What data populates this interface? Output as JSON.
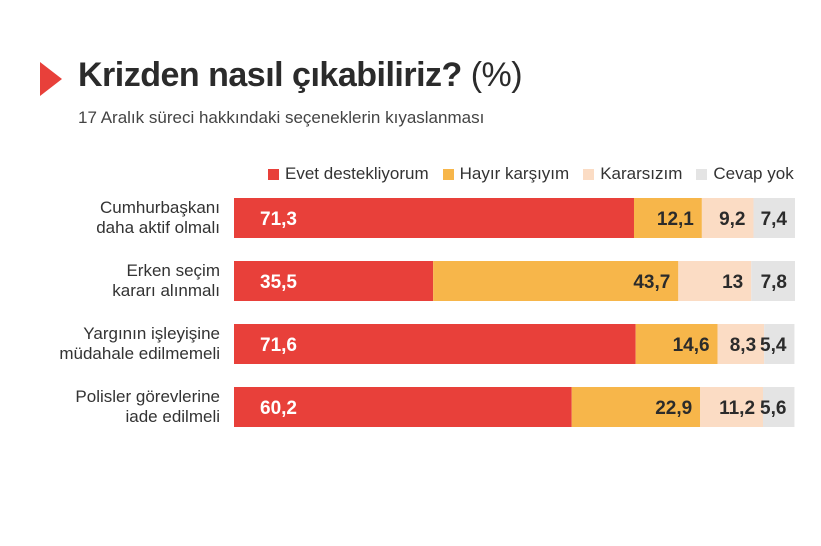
{
  "header": {
    "title": "Krizden nasıl çıkabiliriz?",
    "title_unit": "(%)",
    "subtitle": "17 Aralık süreci hakkındaki seçeneklerin kıyaslanması"
  },
  "chart_data": {
    "type": "bar",
    "orientation": "horizontal",
    "stacked": true,
    "categories": [
      "Cumhurbaşkanı daha aktif olmalı",
      "Erken seçim kararı alınmalı",
      "Yargının işleyişine müdahale edilmemeli",
      "Polisler görevlerine iade edilmeli"
    ],
    "category_lines": [
      [
        "Cumhurbaşkanı",
        "daha aktif olmalı"
      ],
      [
        "Erken seçim",
        "kararı alınmalı"
      ],
      [
        "Yargının işleyişine",
        "müdahale edilmemeli"
      ],
      [
        "Polisler görevlerine",
        "iade edilmeli"
      ]
    ],
    "series": [
      {
        "name": "Evet destekliyorum",
        "color": "#e8403a",
        "label_color": "#ffffff",
        "values": [
          71.3,
          35.5,
          71.6,
          60.2
        ],
        "labels": [
          "71,3",
          "35,5",
          "71,6",
          "60,2"
        ]
      },
      {
        "name": "Hayır karşıyım",
        "color": "#f7b64a",
        "label_color": "#2b2b2b",
        "values": [
          12.1,
          43.7,
          14.6,
          22.9
        ],
        "labels": [
          "12,1",
          "43,7",
          "14,6",
          "22,9"
        ]
      },
      {
        "name": "Kararsızım",
        "color": "#fbdcc4",
        "label_color": "#2b2b2b",
        "values": [
          9.2,
          13,
          8.3,
          11.2
        ],
        "labels": [
          "9,2",
          "13",
          "8,3",
          "11,2"
        ]
      },
      {
        "name": "Cevap yok",
        "color": "#e4e4e4",
        "label_color": "#2b2b2b",
        "values": [
          7.4,
          7.8,
          5.4,
          5.6
        ],
        "labels": [
          "7,4",
          "7,8",
          "5,4",
          "5,6"
        ]
      }
    ],
    "xlim": [
      0,
      100
    ],
    "legend_position": "top"
  }
}
